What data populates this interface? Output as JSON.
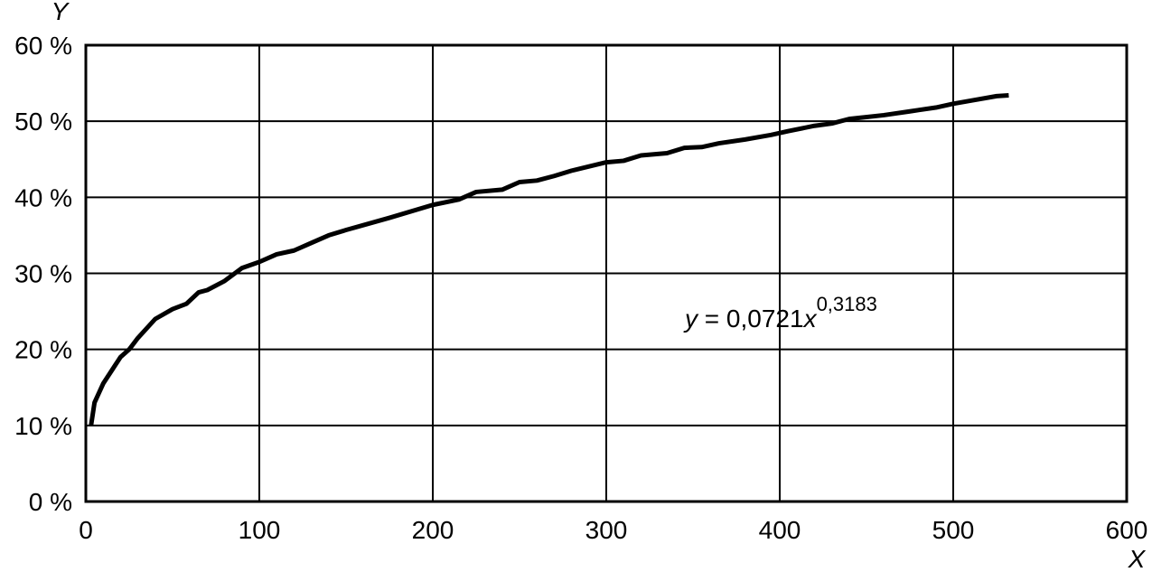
{
  "chart_data": {
    "type": "line",
    "x_label": "X",
    "y_label": "Y",
    "annotation": {
      "y": "y",
      "equals": " = 0,0721",
      "x": "x",
      "exponent": "0,3183"
    },
    "xlim": [
      0,
      600
    ],
    "xticks": [
      0,
      100,
      200,
      300,
      400,
      500,
      600
    ],
    "ylim": [
      0,
      60
    ],
    "yticks": [
      {
        "value": 0,
        "label": "0 %"
      },
      {
        "value": 10,
        "label": "10 %"
      },
      {
        "value": 20,
        "label": "20 %"
      },
      {
        "value": 30,
        "label": "30 %"
      },
      {
        "value": 40,
        "label": "40 %"
      },
      {
        "value": 50,
        "label": "50 %"
      },
      {
        "value": 60,
        "label": "60 %"
      }
    ],
    "grid": true,
    "color": "#000000",
    "x": [
      3,
      5,
      10,
      20,
      25,
      30,
      40,
      50,
      58,
      65,
      70,
      80,
      90,
      100,
      110,
      120,
      130,
      140,
      150,
      175,
      200,
      215,
      225,
      240,
      250,
      260,
      270,
      280,
      300,
      310,
      320,
      335,
      345,
      355,
      365,
      380,
      395,
      405,
      420,
      430,
      440,
      460,
      475,
      490,
      500,
      510,
      525,
      532
    ],
    "values": [
      10,
      13,
      15.5,
      19,
      20,
      21.5,
      24,
      25.3,
      26,
      27.5,
      27.8,
      29,
      30.7,
      31.5,
      32.5,
      33,
      34,
      35,
      35.7,
      37.3,
      39,
      39.7,
      40.7,
      41,
      42,
      42.2,
      42.8,
      43.5,
      44.6,
      44.8,
      45.5,
      45.8,
      46.5,
      46.6,
      47.1,
      47.6,
      48.2,
      48.7,
      49.4,
      49.7,
      50.3,
      50.8,
      51.3,
      51.8,
      52.3,
      52.7,
      53.3,
      53.4
    ]
  }
}
